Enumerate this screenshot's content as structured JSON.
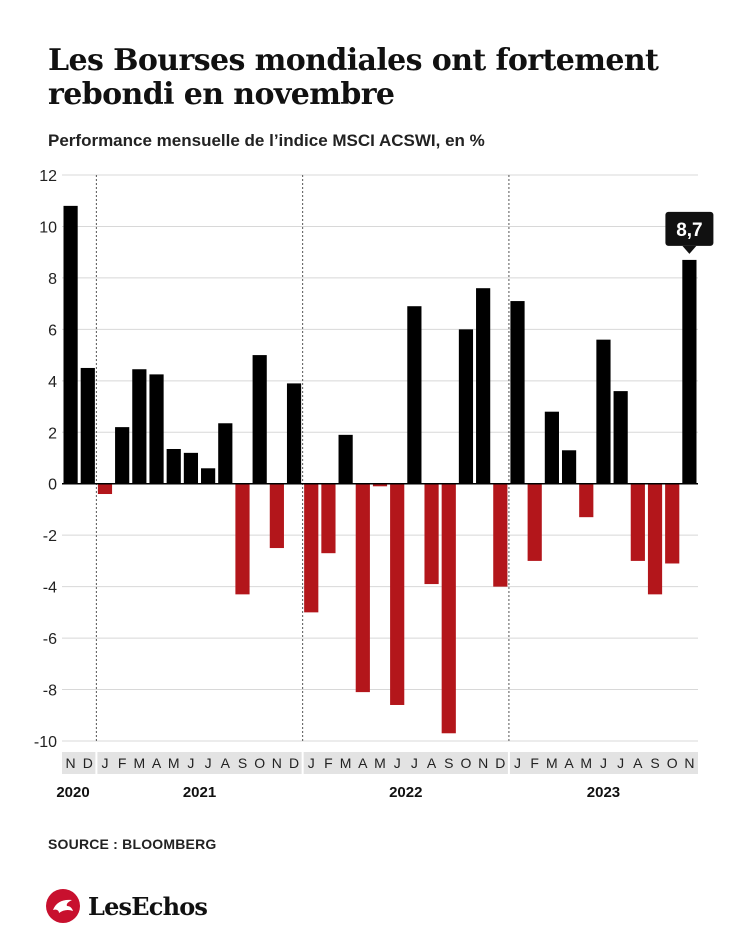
{
  "header": {
    "title": "Les Bourses mondiales ont fortement rebondi en novembre",
    "subtitle": "Performance mensuelle de l’indice MSCI ACSWI, en %"
  },
  "footer": {
    "source": "SOURCE : BLOOMBERG",
    "brand": "LesEchos"
  },
  "colors": {
    "positive": "#000000",
    "negative": "#b3161b",
    "month_band": "#e3e3e3"
  },
  "chart_data": {
    "type": "bar",
    "title": "Les Bourses mondiales ont fortement rebondi en novembre",
    "subtitle": "Performance mensuelle de l’indice MSCI ACSWI, en %",
    "xlabel": "",
    "ylabel": "",
    "ylim": [
      -10,
      12
    ],
    "yticks": [
      12,
      10,
      8,
      6,
      4,
      2,
      0,
      -2,
      -4,
      -6,
      -8,
      -10
    ],
    "grid": true,
    "categories": [
      "N",
      "D",
      "J",
      "F",
      "M",
      "A",
      "M",
      "J",
      "J",
      "A",
      "S",
      "O",
      "N",
      "D",
      "J",
      "F",
      "M",
      "A",
      "M",
      "J",
      "J",
      "A",
      "S",
      "O",
      "N",
      "D",
      "J",
      "F",
      "M",
      "A",
      "M",
      "J",
      "J",
      "A",
      "S",
      "O",
      "N"
    ],
    "values": [
      10.8,
      4.5,
      -0.4,
      2.2,
      4.45,
      4.25,
      1.35,
      1.2,
      0.6,
      2.35,
      -4.3,
      5.0,
      -2.5,
      3.9,
      -5.0,
      -2.7,
      1.9,
      -8.1,
      -0.1,
      -8.6,
      6.9,
      -3.9,
      -9.7,
      6.0,
      7.6,
      -4.0,
      7.1,
      -3.0,
      2.8,
      1.3,
      -1.3,
      5.6,
      3.6,
      -3.0,
      -4.3,
      -3.1,
      8.7
    ],
    "years": [
      {
        "label": "2020",
        "start": 0,
        "end": 1
      },
      {
        "label": "2021",
        "start": 2,
        "end": 13
      },
      {
        "label": "2022",
        "start": 14,
        "end": 25
      },
      {
        "label": "2023",
        "start": 26,
        "end": 36
      }
    ],
    "highlight": {
      "index": 36,
      "label": "8,7"
    }
  }
}
